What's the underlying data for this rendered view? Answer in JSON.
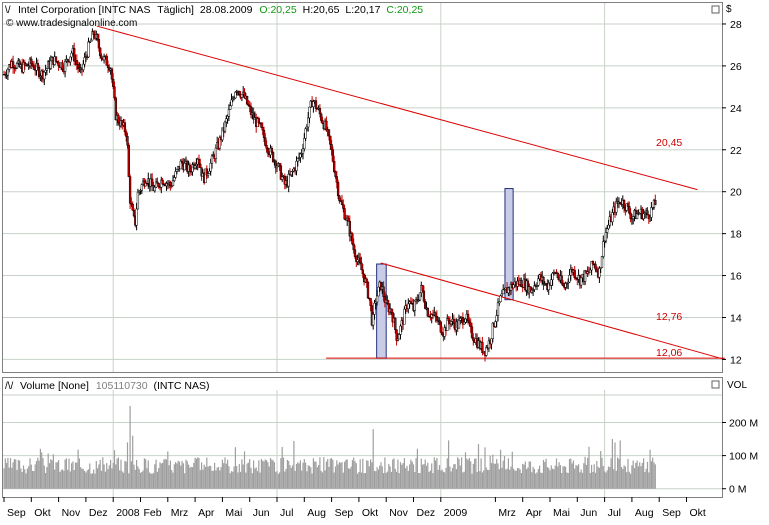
{
  "header": {
    "symbol_name": "Intel Corporation [INTC NAS",
    "period": "Täglich]",
    "date": "28.08.2009",
    "open": "O:20,25",
    "high": "H:20,65",
    "low": "L:20,17",
    "close": "C:20,25",
    "source": "© www.tradesignalonline.com",
    "currency": "$"
  },
  "colors": {
    "background": "#ffffff",
    "grid": "#c8d2c8",
    "candle_body": "#000000",
    "candle_down": "#c00000",
    "trendline": "#dd0000",
    "highlight_fill": "#c8cce6",
    "highlight_stroke": "#22307a",
    "volume_bar": "#9e9e9e",
    "text_green": "#119a11",
    "text_red": "#cc0000",
    "text_dark": "#000000"
  },
  "chart_data": [
    {
      "type": "candlestick",
      "name": "price",
      "ylim": [
        11.4,
        29
      ],
      "y_ticks": [
        12,
        14,
        16,
        18,
        20,
        22,
        24,
        26,
        28
      ],
      "x_labels": [
        "Sep",
        "Okt",
        "Nov",
        "Dez",
        "2008",
        "Feb",
        "Mrz",
        "Apr",
        "Mai",
        "Jun",
        "Jul",
        "Aug",
        "Sep",
        "Okt",
        "Nov",
        "Dez",
        "2009",
        "Mrz",
        "Apr",
        "Mai",
        "Jun",
        "Jul",
        "Aug",
        "Sep",
        "Okt"
      ],
      "x_label_months": [
        0,
        1,
        2,
        3,
        4,
        5,
        6,
        7,
        8,
        9,
        10,
        11,
        12,
        13,
        14,
        15,
        16,
        18,
        19,
        20,
        21,
        22,
        23,
        24,
        25
      ],
      "grid": true,
      "data_start": 0.0,
      "data_end": 23.9,
      "close_path": [
        [
          0.0,
          25.6
        ],
        [
          0.3,
          26.2
        ],
        [
          0.6,
          25.9
        ],
        [
          1.0,
          26.1
        ],
        [
          1.4,
          25.6
        ],
        [
          1.8,
          26.3
        ],
        [
          2.2,
          26.0
        ],
        [
          2.5,
          26.7
        ],
        [
          2.8,
          25.6
        ],
        [
          3.1,
          26.9
        ],
        [
          3.3,
          27.6
        ],
        [
          3.6,
          26.4
        ],
        [
          3.9,
          26.0
        ],
        [
          4.1,
          23.6
        ],
        [
          4.3,
          23.2
        ],
        [
          4.5,
          22.8
        ],
        [
          4.6,
          19.8
        ],
        [
          4.7,
          19.0
        ],
        [
          4.8,
          18.4
        ],
        [
          4.9,
          19.9
        ],
        [
          5.2,
          20.7
        ],
        [
          5.5,
          20.1
        ],
        [
          5.8,
          20.6
        ],
        [
          6.1,
          20.3
        ],
        [
          6.5,
          21.4
        ],
        [
          6.8,
          21.0
        ],
        [
          7.1,
          21.7
        ],
        [
          7.3,
          20.6
        ],
        [
          7.6,
          21.4
        ],
        [
          7.9,
          22.4
        ],
        [
          8.2,
          23.6
        ],
        [
          8.5,
          25.0
        ],
        [
          8.8,
          24.5
        ],
        [
          9.1,
          23.6
        ],
        [
          9.4,
          23.0
        ],
        [
          9.7,
          22.0
        ],
        [
          10.0,
          21.3
        ],
        [
          10.3,
          20.3
        ],
        [
          10.6,
          21.0
        ],
        [
          10.9,
          21.9
        ],
        [
          11.1,
          23.3
        ],
        [
          11.3,
          24.4
        ],
        [
          11.5,
          23.9
        ],
        [
          11.8,
          23.0
        ],
        [
          12.0,
          21.9
        ],
        [
          12.3,
          19.6
        ],
        [
          12.6,
          18.5
        ],
        [
          12.8,
          17.3
        ],
        [
          13.0,
          16.6
        ],
        [
          13.2,
          15.9
        ],
        [
          13.4,
          14.8
        ],
        [
          13.5,
          13.6
        ],
        [
          13.6,
          14.8
        ],
        [
          13.8,
          15.6
        ],
        [
          14.0,
          14.6
        ],
        [
          14.2,
          14.3
        ],
        [
          14.4,
          13.0
        ],
        [
          14.6,
          13.8
        ],
        [
          14.8,
          14.8
        ],
        [
          15.0,
          14.4
        ],
        [
          15.3,
          15.4
        ],
        [
          15.5,
          14.3
        ],
        [
          15.8,
          14.0
        ],
        [
          16.1,
          13.3
        ],
        [
          16.3,
          13.9
        ],
        [
          16.6,
          13.6
        ],
        [
          16.9,
          14.1
        ],
        [
          17.1,
          13.3
        ],
        [
          17.4,
          12.7
        ],
        [
          17.6,
          12.4
        ],
        [
          17.8,
          12.9
        ],
        [
          18.0,
          14.0
        ],
        [
          18.2,
          14.9
        ],
        [
          18.4,
          15.3
        ],
        [
          18.7,
          15.6
        ],
        [
          19.0,
          15.7
        ],
        [
          19.3,
          15.3
        ],
        [
          19.6,
          15.9
        ],
        [
          19.9,
          15.5
        ],
        [
          20.2,
          16.2
        ],
        [
          20.5,
          15.4
        ],
        [
          20.8,
          16.3
        ],
        [
          21.1,
          15.8
        ],
        [
          21.4,
          16.1
        ],
        [
          21.6,
          16.6
        ],
        [
          21.8,
          16.1
        ],
        [
          22.0,
          17.9
        ],
        [
          22.2,
          18.6
        ],
        [
          22.4,
          19.3
        ],
        [
          22.6,
          19.6
        ],
        [
          22.8,
          19.3
        ],
        [
          23.0,
          18.8
        ],
        [
          23.3,
          19.0
        ],
        [
          23.6,
          18.9
        ],
        [
          23.9,
          19.5
        ]
      ],
      "trendlines": [
        {
          "from": [
            3.4,
            27.9
          ],
          "to": [
            25.4,
            20.1
          ],
          "label": "20,45"
        },
        {
          "from": [
            13.8,
            16.6
          ],
          "to": [
            26.4,
            12.0
          ],
          "label": "12,76"
        },
        {
          "from": [
            11.8,
            12.06
          ],
          "to": [
            26.4,
            12.06
          ],
          "label": "12,06"
        }
      ],
      "highlight_boxes": [
        {
          "x0": 13.65,
          "x1": 14.0,
          "y0": 12.06,
          "y1": 16.55
        },
        {
          "x0": 18.35,
          "x1": 18.65,
          "y0": 14.85,
          "y1": 20.15
        }
      ]
    },
    {
      "type": "bar",
      "name": "Volume",
      "title": "Volume [None]",
      "value_label": "105110730",
      "symbol": "(INTC NAS)",
      "unit_label": "VOL",
      "ylim": [
        -25,
        280
      ],
      "y_ticks": [
        0,
        100,
        200
      ],
      "y_tick_labels": [
        "0 M",
        "100 M",
        "200 M"
      ],
      "typical_range": [
        45,
        95
      ],
      "spikes": [
        [
          4.6,
          250
        ],
        [
          4.5,
          140
        ],
        [
          4.7,
          160
        ],
        [
          22.3,
          150
        ],
        [
          13.5,
          180
        ],
        [
          16.9,
          110
        ],
        [
          17.6,
          125
        ]
      ]
    }
  ]
}
